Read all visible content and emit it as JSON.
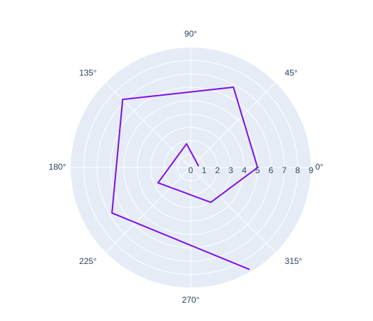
{
  "chart_data": {
    "type": "line",
    "subtype": "polar",
    "angular_unit": "degrees",
    "angular_ticks": [
      "0°",
      "45°",
      "90°",
      "135°",
      "180°",
      "225°",
      "270°",
      "315°"
    ],
    "radial_ticks": [
      "0",
      "1",
      "2",
      "3",
      "4",
      "5",
      "6",
      "7",
      "8",
      "9"
    ],
    "radial_range": [
      0,
      9
    ],
    "grid": true,
    "background_color": "#e5ecf6",
    "grid_color": "#ffffff",
    "series": [
      {
        "color": "#7e0ee7",
        "r": [
          0.6,
          1.8,
          2.7,
          3.0,
          5.0,
          6.8,
          7.2,
          6.8,
          8.8
        ],
        "theta": [
          10,
          100,
          205,
          300,
          0,
          62,
          135,
          210,
          300
        ]
      }
    ]
  }
}
